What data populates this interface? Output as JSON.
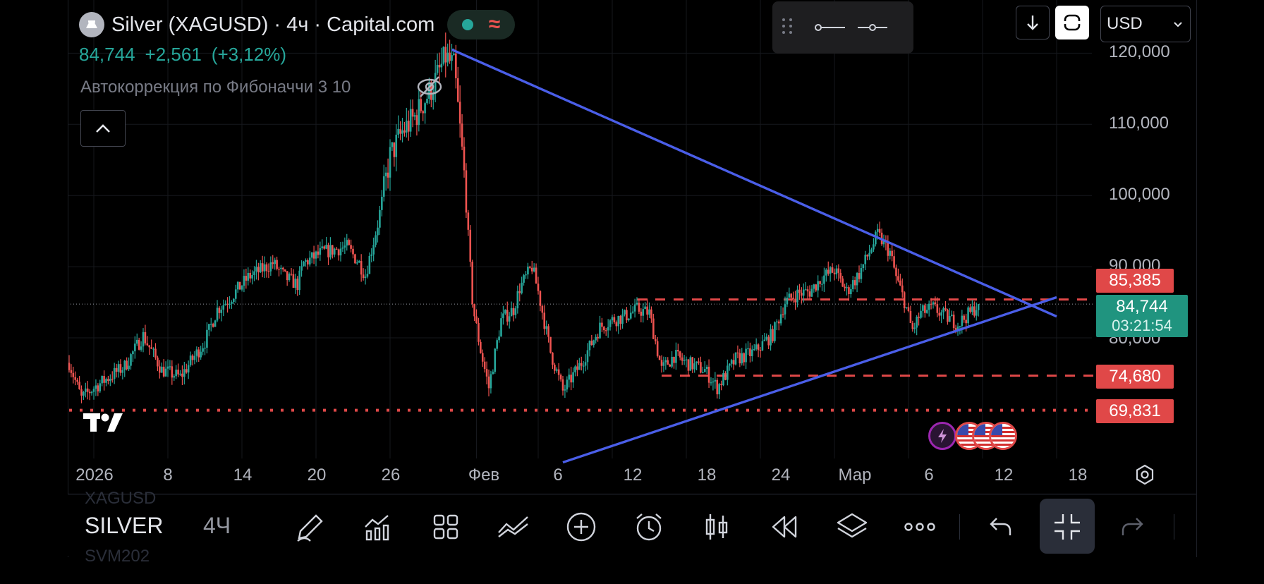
{
  "header": {
    "title": "Silver (XAGUSD) · 4ч · Capital.com",
    "price": "84,744",
    "change": "+2,561",
    "change_pct": "(+3,12%)",
    "indicator": "Автокоррекция по Фибоначчи 3 10"
  },
  "top_right": {
    "currency": "USD"
  },
  "y_axis": [
    "120,000",
    "110,000",
    "100,000",
    "90,000",
    "80,000"
  ],
  "x_axis": [
    "2026",
    "8",
    "14",
    "20",
    "26",
    "Фев",
    "6",
    "12",
    "18",
    "24",
    "Мар",
    "6",
    "12",
    "18"
  ],
  "price_badges": [
    {
      "label": "85,385",
      "value": 85385
    },
    {
      "label": "74,680",
      "value": 74680
    },
    {
      "label": "69,831",
      "value": 69831
    }
  ],
  "current": {
    "price": "84,744",
    "countdown": "03:21:54"
  },
  "bottom": {
    "symbol": "SILVER",
    "interval": "4Ч",
    "ghost_top": "XAGUSD",
    "ghost_bottom": "SVM202"
  },
  "icons": [
    "drawing-pen-icon",
    "indicators-icon",
    "templates-icon",
    "compare-icon",
    "add-icon",
    "alert-icon",
    "candles-icon",
    "replay-icon",
    "layers-icon",
    "more-icon",
    "undo-icon",
    "fullscreen-exit-icon",
    "redo-icon",
    "settings-icon",
    "eye-crossed-icon"
  ],
  "colors": {
    "up": "#26a69a",
    "down": "#ef5350",
    "trendline": "#4a5ee8",
    "level": "#e04848",
    "badge_red": "#e04848",
    "badge_green": "#20947f"
  },
  "chart_data": {
    "type": "candlestick",
    "symbol": "Silver (XAGUSD)",
    "timeframe": "4ч",
    "ylim": [
      62000,
      123000
    ],
    "yticks": [
      80000,
      90000,
      100000,
      110000,
      120000
    ],
    "x_dates": [
      "2025-12-31",
      "2026-01-08",
      "2026-01-14",
      "2026-01-20",
      "2026-01-26",
      "2026-02-01",
      "2026-02-06",
      "2026-02-12",
      "2026-02-18",
      "2026-02-24",
      "2026-03-01",
      "2026-03-06",
      "2026-03-12",
      "2026-03-18"
    ],
    "price_path": [
      {
        "d": 0,
        "p": 76500
      },
      {
        "d": 1,
        "p": 71500
      },
      {
        "d": 2,
        "p": 73000
      },
      {
        "d": 3,
        "p": 74200
      },
      {
        "d": 4.5,
        "p": 76000
      },
      {
        "d": 6,
        "p": 80300
      },
      {
        "d": 7.5,
        "p": 75500
      },
      {
        "d": 9,
        "p": 74500
      },
      {
        "d": 11,
        "p": 79500
      },
      {
        "d": 12,
        "p": 84000
      },
      {
        "d": 13,
        "p": 85500
      },
      {
        "d": 14.5,
        "p": 88500
      },
      {
        "d": 15.5,
        "p": 89500
      },
      {
        "d": 16.5,
        "p": 90500
      },
      {
        "d": 17.5,
        "p": 88500
      },
      {
        "d": 18.5,
        "p": 87500
      },
      {
        "d": 19,
        "p": 90500
      },
      {
        "d": 20.5,
        "p": 92000
      },
      {
        "d": 22.5,
        "p": 92800
      },
      {
        "d": 23.5,
        "p": 90500
      },
      {
        "d": 24,
        "p": 88800
      },
      {
        "d": 25,
        "p": 96000
      },
      {
        "d": 26,
        "p": 105500
      },
      {
        "d": 27,
        "p": 109000
      },
      {
        "d": 28,
        "p": 111000
      },
      {
        "d": 29.5,
        "p": 115500
      },
      {
        "d": 30.5,
        "p": 119500
      },
      {
        "d": 31.2,
        "p": 118000
      },
      {
        "d": 32,
        "p": 103000
      },
      {
        "d": 32.7,
        "p": 84500
      },
      {
        "d": 33.3,
        "p": 78500
      },
      {
        "d": 34,
        "p": 73000
      },
      {
        "d": 35,
        "p": 82500
      },
      {
        "d": 36,
        "p": 84000
      },
      {
        "d": 36.5,
        "p": 87000
      },
      {
        "d": 37.5,
        "p": 90000
      },
      {
        "d": 38,
        "p": 86500
      },
      {
        "d": 39,
        "p": 78000
      },
      {
        "d": 40,
        "p": 72500
      },
      {
        "d": 41.5,
        "p": 76500
      },
      {
        "d": 43,
        "p": 81500
      },
      {
        "d": 44,
        "p": 82500
      },
      {
        "d": 45,
        "p": 83000
      },
      {
        "d": 46,
        "p": 84000
      },
      {
        "d": 47,
        "p": 83500
      },
      {
        "d": 48,
        "p": 75500
      },
      {
        "d": 49,
        "p": 77500
      },
      {
        "d": 50,
        "p": 76500
      },
      {
        "d": 51.5,
        "p": 75500
      },
      {
        "d": 52.5,
        "p": 73000
      },
      {
        "d": 54,
        "p": 77000
      },
      {
        "d": 55.5,
        "p": 78000
      },
      {
        "d": 57,
        "p": 80500
      },
      {
        "d": 58,
        "p": 85000
      },
      {
        "d": 59,
        "p": 86200
      },
      {
        "d": 60,
        "p": 86500
      },
      {
        "d": 61,
        "p": 88500
      },
      {
        "d": 62,
        "p": 89500
      },
      {
        "d": 63,
        "p": 86500
      },
      {
        "d": 64,
        "p": 89000
      },
      {
        "d": 65.5,
        "p": 94500
      },
      {
        "d": 66.5,
        "p": 92000
      },
      {
        "d": 67,
        "p": 88500
      },
      {
        "d": 67.7,
        "p": 85000
      },
      {
        "d": 68.3,
        "p": 81000
      },
      {
        "d": 69,
        "p": 83500
      },
      {
        "d": 70,
        "p": 84200
      },
      {
        "d": 71,
        "p": 83000
      },
      {
        "d": 72,
        "p": 82000
      },
      {
        "d": 73,
        "p": 83500
      },
      {
        "d": 73.7,
        "p": 84744
      }
    ],
    "trendlines": [
      {
        "name": "resistance",
        "from": {
          "d": 31,
          "p": 120500
        },
        "to": {
          "d": 80,
          "p": 83000
        }
      },
      {
        "name": "support",
        "from": {
          "d": 40,
          "p": 62500
        },
        "to": {
          "d": 80,
          "p": 85700
        }
      }
    ],
    "levels": [
      {
        "value": 85385,
        "style": "dashed",
        "from_d": 46
      },
      {
        "value": 74680,
        "style": "dashed",
        "from_d": 48
      },
      {
        "value": 69831,
        "style": "dotted",
        "from_d": 0
      },
      {
        "value": 84744,
        "style": "current",
        "from_d": 0
      }
    ]
  }
}
